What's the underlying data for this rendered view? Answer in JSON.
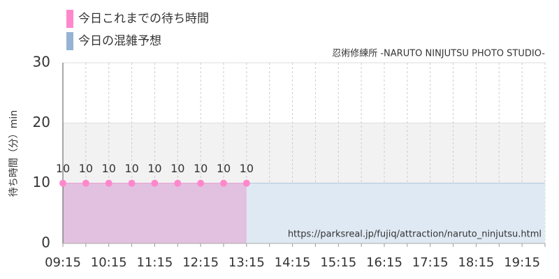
{
  "chart_data": {
    "type": "area",
    "subtitle": "忍術修練所 -NARUTO NINJUTSU PHOTO STUDIO-",
    "y_label": "待ち時間（分）min",
    "annotation": "https://parksreal.jp/fujiq/attraction/naruto_ninjutsu.html",
    "categories": [
      "09:15",
      null,
      "10:15",
      null,
      "11:15",
      null,
      "12:15",
      null,
      "13:15",
      null,
      "14:15",
      null,
      "15:15",
      null,
      "16:15",
      null,
      "17:15",
      null,
      "18:15",
      null,
      "19:15",
      null
    ],
    "series": [
      {
        "name": "今日これまでの待ち時間",
        "color": "#ff88cc",
        "fill": "#e2c0df",
        "markers": true,
        "data_labels": true,
        "values": [
          10,
          10,
          10,
          10,
          10,
          10,
          10,
          10,
          10,
          null,
          null,
          null,
          null,
          null,
          null,
          null,
          null,
          null,
          null,
          null,
          null,
          null
        ]
      },
      {
        "name": "今日の混雑予想",
        "color": "#95b3d3",
        "fill": "#dfe9f3",
        "markers": false,
        "data_labels": false,
        "values": [
          10,
          10,
          10,
          10,
          10,
          10,
          10,
          10,
          10,
          10,
          10,
          10,
          10,
          10,
          10,
          10,
          10,
          10,
          10,
          10,
          10,
          10
        ]
      }
    ],
    "ylim": [
      0,
      30
    ],
    "yticks": [
      0,
      10,
      20,
      30
    ],
    "bands": [
      {
        "from": 10,
        "to": 20,
        "color": "#f2f2f2"
      }
    ],
    "grid": true,
    "legend": "top-left"
  }
}
